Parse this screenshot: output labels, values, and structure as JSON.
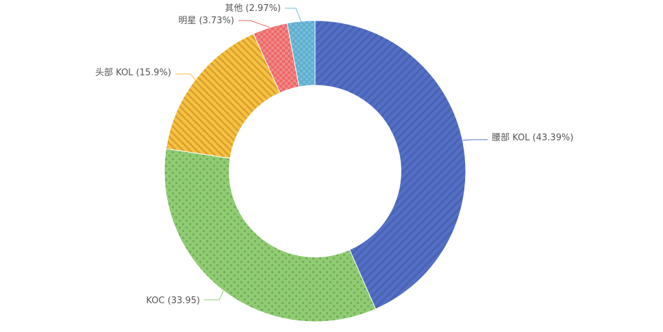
{
  "chart_data": {
    "type": "pie",
    "variant": "donut",
    "inner_radius_ratio": 0.57,
    "start_angle_deg": 90,
    "direction": "clockwise",
    "series": [
      {
        "name": "腰部 KOL",
        "value": 43.39,
        "label": "腰部 KOL (43.39%)",
        "color": "#5470c6",
        "pattern": "diagonal-stripes"
      },
      {
        "name": "KOC",
        "value": 33.95,
        "label": "KOC (33.95)",
        "color": "#91cc75",
        "pattern": "dots"
      },
      {
        "name": "头部 KOL",
        "value": 15.9,
        "label": "头部 KOL (15.9%)",
        "color": "#f5c242",
        "pattern": "diagonal-stripes"
      },
      {
        "name": "明星",
        "value": 3.73,
        "label": "明星 (3.73%)",
        "color": "#ee6666",
        "pattern": "checker"
      },
      {
        "name": "其他",
        "value": 2.97,
        "label": "其他 (2.97%)",
        "color": "#73c0de",
        "pattern": "crosshatch"
      }
    ]
  }
}
